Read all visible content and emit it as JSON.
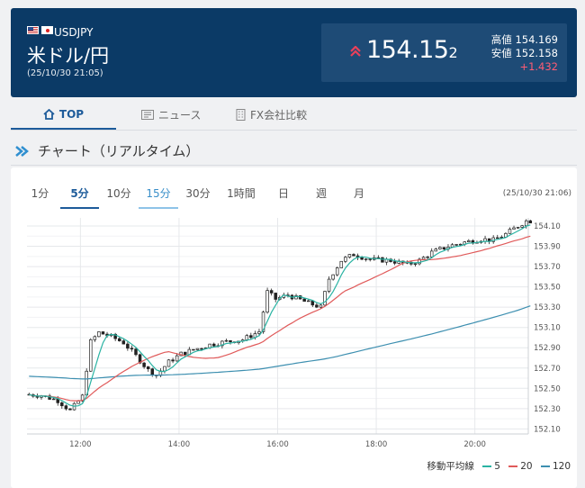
{
  "header": {
    "pair_code": "USDJPY",
    "pair_name": "米ドル/円",
    "timestamp": "(25/10/30 21:05)",
    "rate_main": "154.15",
    "rate_pip": "2",
    "high_label": "高値",
    "high_value": "154.169",
    "low_label": "安値",
    "low_value": "152.158",
    "change": "+1.432"
  },
  "tabs": [
    {
      "label": "TOP",
      "icon": "home-icon",
      "active": true
    },
    {
      "label": "ニュース",
      "icon": "newspaper-icon",
      "active": false
    },
    {
      "label": "FX会社比較",
      "icon": "building-icon",
      "active": false
    }
  ],
  "section": {
    "title": "チャート（リアルタイム）"
  },
  "chart_ui": {
    "ranges": [
      "1分",
      "5分",
      "10分",
      "15分",
      "30分",
      "1時間",
      "日",
      "週",
      "月"
    ],
    "selected_range": "5分",
    "highlight_range": "15分",
    "timestamp": "(25/10/30 21:06)",
    "legend_title": "移動平均線",
    "ma_labels": [
      "5",
      "20",
      "120"
    ]
  },
  "colors": {
    "header_bg": "#0b3a66",
    "up": "#e9405a",
    "ma5": "#2ab3a3",
    "ma20": "#e05a5a",
    "ma120": "#3d8fb0",
    "accent": "#1d5b9a"
  },
  "chart_data": {
    "type": "candlestick",
    "x_ticks": [
      "12:00",
      "14:00",
      "16:00",
      "18:00",
      "20:00"
    ],
    "y_ticks": [
      154.1,
      153.9,
      153.7,
      153.5,
      153.3,
      153.1,
      152.9,
      152.7,
      152.5,
      152.3,
      152.1
    ],
    "ylim": [
      152.05,
      154.18
    ],
    "x_range": [
      "10:55",
      "21:05"
    ],
    "close_series": [
      [
        "10:55",
        152.44
      ],
      [
        "11:15",
        152.43
      ],
      [
        "11:35",
        152.38
      ],
      [
        "11:50",
        152.28
      ],
      [
        "12:05",
        152.42
      ],
      [
        "12:15",
        152.96
      ],
      [
        "12:25",
        153.05
      ],
      [
        "12:40",
        153.01
      ],
      [
        "12:55",
        152.95
      ],
      [
        "13:10",
        152.82
      ],
      [
        "13:25",
        152.68
      ],
      [
        "13:35",
        152.63
      ],
      [
        "13:50",
        152.76
      ],
      [
        "14:05",
        152.84
      ],
      [
        "14:20",
        152.88
      ],
      [
        "14:40",
        152.93
      ],
      [
        "15:00",
        152.96
      ],
      [
        "15:20",
        152.98
      ],
      [
        "15:40",
        153.06
      ],
      [
        "15:50",
        153.45
      ],
      [
        "16:00",
        153.38
      ],
      [
        "16:15",
        153.42
      ],
      [
        "16:40",
        153.34
      ],
      [
        "16:55",
        153.3
      ],
      [
        "17:05",
        153.58
      ],
      [
        "17:20",
        153.76
      ],
      [
        "17:35",
        153.82
      ],
      [
        "17:55",
        153.77
      ],
      [
        "18:20",
        153.76
      ],
      [
        "18:40",
        153.72
      ],
      [
        "18:55",
        153.76
      ],
      [
        "19:10",
        153.84
      ],
      [
        "19:30",
        153.9
      ],
      [
        "19:50",
        153.94
      ],
      [
        "20:10",
        153.97
      ],
      [
        "20:25",
        153.96
      ],
      [
        "20:40",
        154.02
      ],
      [
        "20:55",
        154.1
      ],
      [
        "21:05",
        154.15
      ]
    ],
    "moving_averages": [
      {
        "name": "5",
        "color": "#2ab3a3"
      },
      {
        "name": "20",
        "color": "#e05a5a"
      },
      {
        "name": "120",
        "color": "#3d8fb0"
      }
    ],
    "grid": true
  }
}
